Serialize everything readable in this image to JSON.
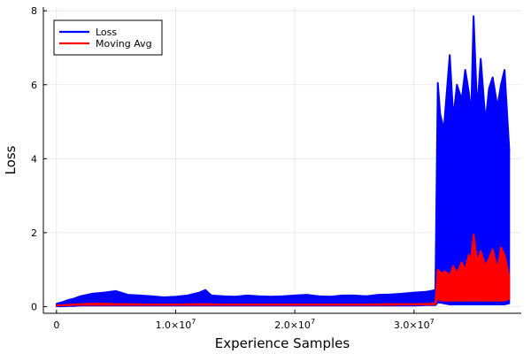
{
  "chart_data": {
    "type": "line",
    "title": "",
    "xlabel": "Experience Samples",
    "ylabel": "Loss",
    "xlim": [
      -1100000,
      39000000
    ],
    "ylim": [
      -0.18,
      8.1
    ],
    "x_ticks": [
      {
        "value": 0,
        "base": "0",
        "exp": ""
      },
      {
        "value": 10000000,
        "base": "1.0×10",
        "exp": "7"
      },
      {
        "value": 20000000,
        "base": "2.0×10",
        "exp": "7"
      },
      {
        "value": 30000000,
        "base": "3.0×10",
        "exp": "7"
      }
    ],
    "y_ticks": [
      {
        "value": 0,
        "label": "0"
      },
      {
        "value": 2,
        "label": "2"
      },
      {
        "value": 4,
        "label": "4"
      },
      {
        "value": 6,
        "label": "6"
      },
      {
        "value": 8,
        "label": "8"
      }
    ],
    "grid": true,
    "legend_position": "top-left",
    "series": [
      {
        "name": "Loss",
        "color": "#0000ff",
        "x": [
          0,
          500000,
          1000000,
          1500000,
          2000000,
          3000000,
          4000000,
          5000000,
          6000000,
          7000000,
          8000000,
          9000000,
          10000000,
          11000000,
          12000000,
          12500000,
          13000000,
          14000000,
          15000000,
          16000000,
          17000000,
          18000000,
          19000000,
          20000000,
          21000000,
          22000000,
          23000000,
          24000000,
          25000000,
          26000000,
          27000000,
          28000000,
          29000000,
          30000000,
          31000000,
          31800000,
          32000000,
          32200000,
          32500000,
          33000000,
          33300000,
          33600000,
          34000000,
          34300000,
          34600000,
          34800000,
          35000000,
          35300000,
          35600000,
          36000000,
          36300000,
          36600000,
          37000000,
          37300000,
          37600000,
          38000000
        ],
        "y": [
          0.08,
          0.12,
          0.18,
          0.22,
          0.28,
          0.35,
          0.38,
          0.42,
          0.32,
          0.3,
          0.28,
          0.25,
          0.27,
          0.3,
          0.38,
          0.45,
          0.3,
          0.28,
          0.27,
          0.3,
          0.28,
          0.27,
          0.28,
          0.3,
          0.32,
          0.28,
          0.27,
          0.3,
          0.3,
          0.28,
          0.32,
          0.33,
          0.35,
          0.38,
          0.4,
          0.45,
          6.05,
          5.2,
          4.8,
          6.8,
          5.1,
          6.0,
          5.6,
          6.4,
          5.8,
          5.2,
          7.85,
          5.3,
          6.7,
          5.0,
          5.9,
          6.2,
          5.4,
          6.0,
          6.4,
          4.2
        ],
        "y_min": [
          0.0,
          0.0,
          0.01,
          0.01,
          0.02,
          0.02,
          0.02,
          0.02,
          0.02,
          0.02,
          0.02,
          0.02,
          0.02,
          0.02,
          0.02,
          0.02,
          0.02,
          0.02,
          0.02,
          0.02,
          0.02,
          0.02,
          0.02,
          0.02,
          0.02,
          0.02,
          0.02,
          0.02,
          0.02,
          0.02,
          0.02,
          0.02,
          0.02,
          0.02,
          0.03,
          0.03,
          0.1,
          0.1,
          0.08,
          0.05,
          0.05,
          0.05,
          0.05,
          0.05,
          0.05,
          0.05,
          0.05,
          0.05,
          0.05,
          0.05,
          0.05,
          0.05,
          0.05,
          0.05,
          0.05,
          0.08
        ]
      },
      {
        "name": "Moving Avg",
        "color": "#ff0000",
        "x": [
          0,
          1000000,
          2000000,
          3000000,
          4000000,
          5000000,
          6000000,
          8000000,
          10000000,
          12000000,
          14000000,
          16000000,
          18000000,
          20000000,
          22000000,
          24000000,
          26000000,
          28000000,
          30000000,
          31500000,
          31800000,
          32000000,
          32300000,
          32600000,
          33000000,
          33300000,
          33600000,
          34000000,
          34300000,
          34600000,
          34800000,
          35000000,
          35300000,
          35600000,
          36000000,
          36300000,
          36600000,
          37000000,
          37300000,
          37600000,
          38000000
        ],
        "y": [
          0.03,
          0.05,
          0.07,
          0.08,
          0.08,
          0.07,
          0.07,
          0.06,
          0.06,
          0.07,
          0.06,
          0.06,
          0.06,
          0.06,
          0.06,
          0.06,
          0.06,
          0.07,
          0.07,
          0.08,
          0.1,
          1.0,
          0.9,
          0.95,
          0.85,
          1.1,
          0.9,
          1.2,
          1.0,
          1.4,
          1.3,
          1.95,
          1.2,
          1.5,
          1.1,
          1.3,
          1.55,
          1.0,
          1.6,
          1.4,
          0.8
        ],
        "y_min": [
          0.02,
          0.03,
          0.04,
          0.04,
          0.04,
          0.04,
          0.04,
          0.04,
          0.04,
          0.04,
          0.04,
          0.04,
          0.04,
          0.04,
          0.04,
          0.04,
          0.04,
          0.04,
          0.05,
          0.05,
          0.06,
          0.2,
          0.15,
          0.15,
          0.15,
          0.15,
          0.15,
          0.15,
          0.15,
          0.15,
          0.15,
          0.15,
          0.15,
          0.15,
          0.15,
          0.15,
          0.15,
          0.15,
          0.15,
          0.15,
          0.2
        ]
      }
    ]
  }
}
